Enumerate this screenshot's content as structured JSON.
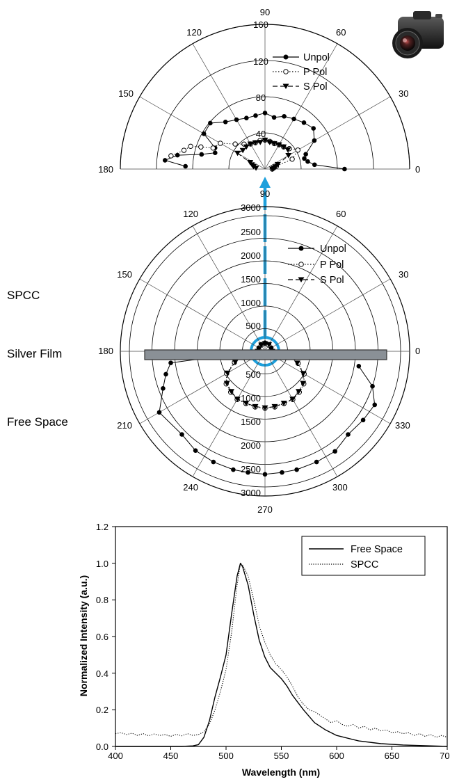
{
  "side_labels": {
    "spcc": "SPCC",
    "silver_film": "Silver Film",
    "free_space": "Free Space"
  },
  "icons": {
    "camera": "camera-icon"
  },
  "colors": {
    "arrow": "#1ea0dc",
    "film": "#8a9096"
  },
  "chart_data": [
    {
      "type": "polar",
      "angle_labels": [
        "0",
        "30",
        "60",
        "90",
        "120",
        "150",
        "180"
      ],
      "radial_ticks": [
        "40",
        "80",
        "120",
        "160"
      ],
      "rlim": [
        0,
        160
      ],
      "angle_range": [
        0,
        180
      ],
      "legend": [
        "Unpol",
        "P Pol",
        "S Pol"
      ],
      "legend_placement": "top-right",
      "series": [
        {
          "name": "Unpol",
          "marker": "filled-circle",
          "line": "solid",
          "points": [
            [
              0,
              88
            ],
            [
              5,
              55
            ],
            [
              10,
              48
            ],
            [
              15,
              45
            ],
            [
              20,
              48
            ],
            [
              30,
              63
            ],
            [
              40,
              70
            ],
            [
              50,
              67
            ],
            [
              60,
              64
            ],
            [
              70,
              62
            ],
            [
              80,
              58
            ],
            [
              90,
              62
            ],
            [
              100,
              60
            ],
            [
              110,
              60
            ],
            [
              120,
              63
            ],
            [
              130,
              68
            ],
            [
              140,
              79
            ],
            [
              150,
              78
            ],
            [
              157,
              60
            ],
            [
              162,
              58
            ],
            [
              167,
              72
            ],
            [
              171,
              98
            ],
            [
              175,
              111
            ],
            [
              178,
              88
            ]
          ]
        },
        {
          "name": "P Pol",
          "marker": "open-circle",
          "line": "dotted",
          "points": [
            [
              0,
              8
            ],
            [
              8,
              10
            ],
            [
              14,
              13
            ],
            [
              20,
              32
            ],
            [
              30,
              42
            ],
            [
              40,
              35
            ],
            [
              50,
              32
            ],
            [
              60,
              31
            ],
            [
              70,
              30
            ],
            [
              80,
              31
            ],
            [
              90,
              32
            ],
            [
              100,
              32
            ],
            [
              110,
              31
            ],
            [
              120,
              32
            ],
            [
              130,
              36
            ],
            [
              140,
              43
            ],
            [
              150,
              57
            ],
            [
              158,
              62
            ],
            [
              161,
              75
            ],
            [
              163,
              86
            ],
            [
              167,
              92
            ],
            [
              172,
              105
            ]
          ]
        },
        {
          "name": "S Pol",
          "marker": "filled-triangle",
          "line": "dashed",
          "points": [
            [
              0,
              8
            ],
            [
              6,
              10
            ],
            [
              12,
              12
            ],
            [
              20,
              15
            ],
            [
              30,
              30
            ],
            [
              40,
              33
            ],
            [
              50,
              32
            ],
            [
              60,
              31
            ],
            [
              70,
              30
            ],
            [
              80,
              30
            ],
            [
              90,
              32
            ],
            [
              100,
              30
            ],
            [
              110,
              31
            ],
            [
              120,
              32
            ],
            [
              130,
              32
            ],
            [
              140,
              32
            ],
            [
              150,
              35
            ],
            [
              156,
              18
            ],
            [
              162,
              15
            ],
            [
              168,
              13
            ],
            [
              174,
              10
            ]
          ]
        }
      ]
    },
    {
      "type": "polar",
      "angle_labels": [
        "0",
        "30",
        "60",
        "90",
        "120",
        "150",
        "180",
        "210",
        "240",
        "270",
        "300",
        "330"
      ],
      "radial_ticks_upper": [
        "500",
        "1000",
        "1500",
        "2000",
        "2500",
        "3000"
      ],
      "radial_ticks_lower": [
        "500",
        "1000",
        "1500",
        "2000",
        "2500",
        "3000"
      ],
      "rlim": [
        0,
        3200
      ],
      "angle_range": [
        0,
        360
      ],
      "legend": [
        "Unpol",
        "P Pol",
        "S Pol"
      ],
      "legend_placement": "top-right",
      "series": [
        {
          "name": "Unpol",
          "marker": "filled-circle",
          "line": "solid",
          "points": [
            [
              0,
              170
            ],
            [
              30,
              160
            ],
            [
              60,
              180
            ],
            [
              90,
              190
            ],
            [
              120,
              180
            ],
            [
              150,
              160
            ],
            [
              180,
              170
            ],
            [
              187,
              2100
            ],
            [
              193,
              2250
            ],
            [
              200,
              2400
            ],
            [
              210,
              2700
            ],
            [
              225,
              2600
            ],
            [
              235,
              2680
            ],
            [
              245,
              2700
            ],
            [
              255,
              2710
            ],
            [
              262,
              2705
            ],
            [
              270,
              2720
            ],
            [
              278,
              2705
            ],
            [
              285,
              2710
            ],
            [
              295,
              2700
            ],
            [
              305,
              2700
            ],
            [
              315,
              2600
            ],
            [
              325,
              2650
            ],
            [
              334,
              2700
            ],
            [
              342,
              2500
            ],
            [
              351,
              2100
            ]
          ]
        },
        {
          "name": "P Pol",
          "marker": "open-circle",
          "line": "dotted",
          "points": [
            [
              0,
              170
            ],
            [
              60,
              160
            ],
            [
              90,
              180
            ],
            [
              120,
              160
            ],
            [
              180,
              170
            ],
            [
              190,
              580
            ],
            [
              200,
              720
            ],
            [
              210,
              980
            ],
            [
              220,
              1120
            ],
            [
              230,
              1180
            ],
            [
              240,
              1230
            ],
            [
              250,
              1230
            ],
            [
              260,
              1250
            ],
            [
              270,
              1260
            ],
            [
              280,
              1250
            ],
            [
              290,
              1230
            ],
            [
              300,
              1230
            ],
            [
              310,
              1180
            ],
            [
              320,
              1120
            ],
            [
              330,
              1000
            ],
            [
              340,
              780
            ],
            [
              350,
              580
            ]
          ]
        },
        {
          "name": "S Pol",
          "marker": "filled-triangle",
          "line": "dashed",
          "points": [
            [
              0,
              160
            ],
            [
              60,
              170
            ],
            [
              90,
              170
            ],
            [
              120,
              160
            ],
            [
              180,
              160
            ],
            [
              190,
              560
            ],
            [
              200,
              700
            ],
            [
              210,
              960
            ],
            [
              220,
              1100
            ],
            [
              230,
              1160
            ],
            [
              240,
              1220
            ],
            [
              250,
              1220
            ],
            [
              260,
              1240
            ],
            [
              270,
              1250
            ],
            [
              280,
              1240
            ],
            [
              290,
              1220
            ],
            [
              300,
              1220
            ],
            [
              310,
              1160
            ],
            [
              320,
              1100
            ],
            [
              330,
              980
            ],
            [
              340,
              760
            ],
            [
              350,
              560
            ]
          ]
        }
      ]
    },
    {
      "type": "line",
      "xlabel": "Wavelength (nm)",
      "ylabel": "Normalized Intensity (a.u.)",
      "xlim": [
        400,
        700
      ],
      "ylim": [
        0,
        1.2
      ],
      "x_ticks": [
        "400",
        "450",
        "500",
        "550",
        "600",
        "650",
        "700"
      ],
      "y_ticks": [
        "0.0",
        "0.2",
        "0.4",
        "0.6",
        "0.8",
        "1.0",
        "1.2"
      ],
      "legend": [
        "Free Space",
        "SPCC"
      ],
      "legend_placement": "top-right",
      "series": [
        {
          "name": "Free Space",
          "line": "solid",
          "x": [
            400,
            440,
            460,
            470,
            475,
            480,
            485,
            490,
            495,
            500,
            505,
            510,
            513,
            515,
            520,
            525,
            530,
            535,
            540,
            545,
            550,
            555,
            560,
            570,
            580,
            590,
            600,
            620,
            640,
            660,
            680,
            700
          ],
          "values": [
            0.0,
            0.0,
            0.0,
            0.003,
            0.01,
            0.05,
            0.14,
            0.27,
            0.38,
            0.5,
            0.72,
            0.93,
            1.0,
            0.98,
            0.88,
            0.72,
            0.58,
            0.49,
            0.43,
            0.4,
            0.37,
            0.33,
            0.28,
            0.2,
            0.13,
            0.09,
            0.06,
            0.03,
            0.015,
            0.008,
            0.004,
            0.0
          ]
        },
        {
          "name": "SPCC",
          "line": "dotted",
          "x": [
            400,
            405,
            410,
            415,
            420,
            425,
            430,
            435,
            440,
            445,
            450,
            455,
            460,
            465,
            470,
            475,
            480,
            485,
            490,
            495,
            500,
            505,
            510,
            513,
            515,
            520,
            525,
            530,
            535,
            540,
            545,
            550,
            555,
            560,
            565,
            570,
            575,
            580,
            585,
            590,
            595,
            600,
            605,
            610,
            615,
            620,
            625,
            630,
            635,
            640,
            645,
            650,
            655,
            660,
            665,
            670,
            675,
            680,
            685,
            690,
            695,
            700
          ],
          "values": [
            0.07,
            0.075,
            0.065,
            0.072,
            0.06,
            0.07,
            0.058,
            0.068,
            0.06,
            0.065,
            0.055,
            0.066,
            0.058,
            0.07,
            0.06,
            0.065,
            0.08,
            0.12,
            0.2,
            0.3,
            0.42,
            0.62,
            0.88,
            1.0,
            0.99,
            0.93,
            0.8,
            0.66,
            0.57,
            0.5,
            0.45,
            0.42,
            0.38,
            0.33,
            0.27,
            0.23,
            0.2,
            0.19,
            0.17,
            0.15,
            0.13,
            0.14,
            0.12,
            0.11,
            0.12,
            0.1,
            0.11,
            0.09,
            0.1,
            0.085,
            0.09,
            0.075,
            0.08,
            0.07,
            0.075,
            0.06,
            0.07,
            0.055,
            0.065,
            0.05,
            0.06,
            0.05
          ]
        }
      ]
    }
  ]
}
